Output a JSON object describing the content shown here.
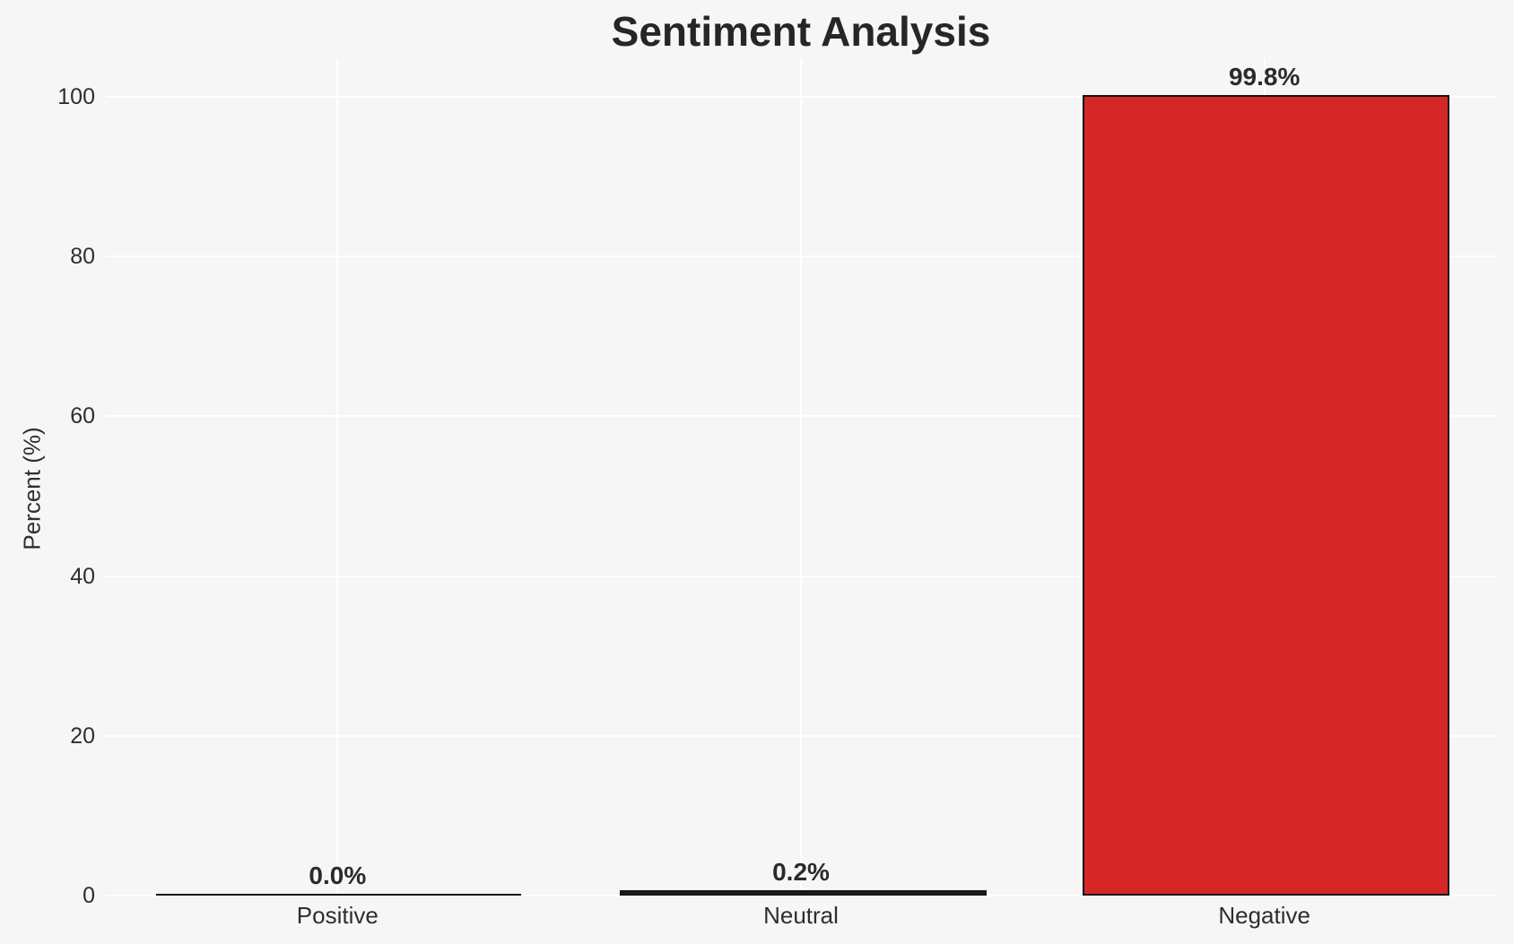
{
  "chart_data": {
    "type": "bar",
    "title": "Sentiment Analysis",
    "ylabel": "Percent (%)",
    "xlabel": "",
    "categories": [
      "Positive",
      "Neutral",
      "Negative"
    ],
    "values": [
      0.0,
      0.2,
      99.8
    ],
    "bar_value_labels": [
      "0.0%",
      "0.2%",
      "99.8%"
    ],
    "yticks": [
      0,
      20,
      40,
      60,
      80,
      100
    ],
    "ylim": [
      0,
      104.8
    ],
    "grid": "on",
    "legend_position": "none",
    "colors": {
      "figure_background": "#f6f6f6",
      "gridline": "#ffffff",
      "bar_fills": [
        "#1a1a1a",
        "#1a1a1a",
        "#d62728"
      ],
      "bar_edge": "#141414",
      "title_text": "#262626",
      "tick_text": "#2e2e2e",
      "value_label_text": "#2b2b2b"
    }
  }
}
